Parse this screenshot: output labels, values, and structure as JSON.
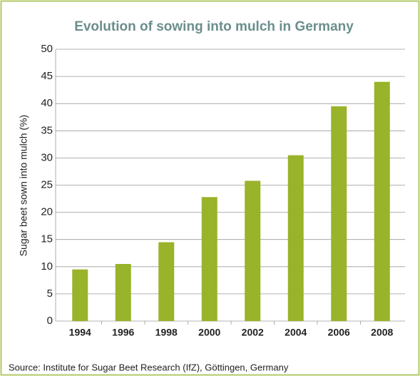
{
  "chart_data": {
    "type": "bar",
    "title": "Evolution of sowing into mulch in Germany",
    "y_label": "Sugar beet sown into mulch (%)",
    "source": "Source: Institute for Sugar Beet Research (IfZ), Göttingen, Germany",
    "categories": [
      "1994",
      "1996",
      "1998",
      "2000",
      "2002",
      "2004",
      "2006",
      "2008"
    ],
    "values": [
      9.5,
      10.5,
      14.5,
      22.8,
      25.8,
      30.5,
      39.5,
      44
    ],
    "color": "#99b32a",
    "ylim": [
      0,
      50
    ],
    "yticks": [
      0,
      5,
      10,
      15,
      20,
      25,
      30,
      35,
      40,
      45,
      50
    ],
    "grid": true
  }
}
